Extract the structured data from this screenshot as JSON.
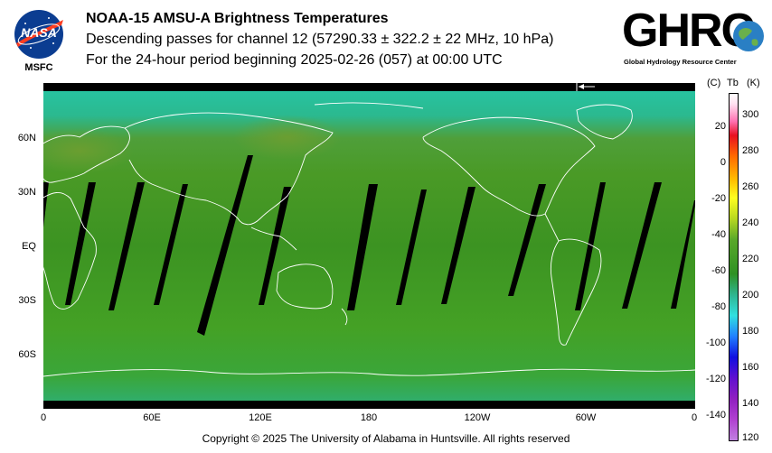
{
  "header": {
    "title": "NOAA-15 AMSU-A Brightness Temperatures",
    "subtitle1": "Descending passes for channel 12 (57290.33 ± 322.2 ± 22 MHz, 10 hPa)",
    "subtitle2": "For the 24-hour period beginning 2025-02-26 (057) at 00:00 UTC"
  },
  "logos": {
    "nasa_text": "NASA",
    "msfc_text": "MSFC",
    "ghrc_text": "GHRC",
    "ghrc_sub": "Global Hydrology Resource Center"
  },
  "map": {
    "lat_labels": [
      "60N",
      "30N",
      "EQ",
      "30S",
      "60S"
    ],
    "lon_labels": [
      "0",
      "60E",
      "120E",
      "180",
      "120W",
      "60W",
      "0"
    ],
    "colors": {
      "polar": "#2fc9a8",
      "mid": "#4f9c2a",
      "tropics": "#3e9424",
      "gap": "#000000",
      "coast": "#ffffff"
    }
  },
  "colorbar": {
    "header_c": "(C)",
    "header_tb": "Tb",
    "header_k": "(K)",
    "celsius_ticks": [
      "20",
      "0",
      "-20",
      "-40",
      "-60",
      "-80",
      "-100",
      "-120",
      "-140"
    ],
    "kelvin_ticks": [
      "300",
      "280",
      "260",
      "240",
      "220",
      "200",
      "180",
      "160",
      "140",
      "120"
    ],
    "k_range": [
      120,
      310
    ]
  },
  "footer": {
    "copyright": "Copyright © 2025 The University of Alabama in Huntsville.  All rights reserved"
  }
}
